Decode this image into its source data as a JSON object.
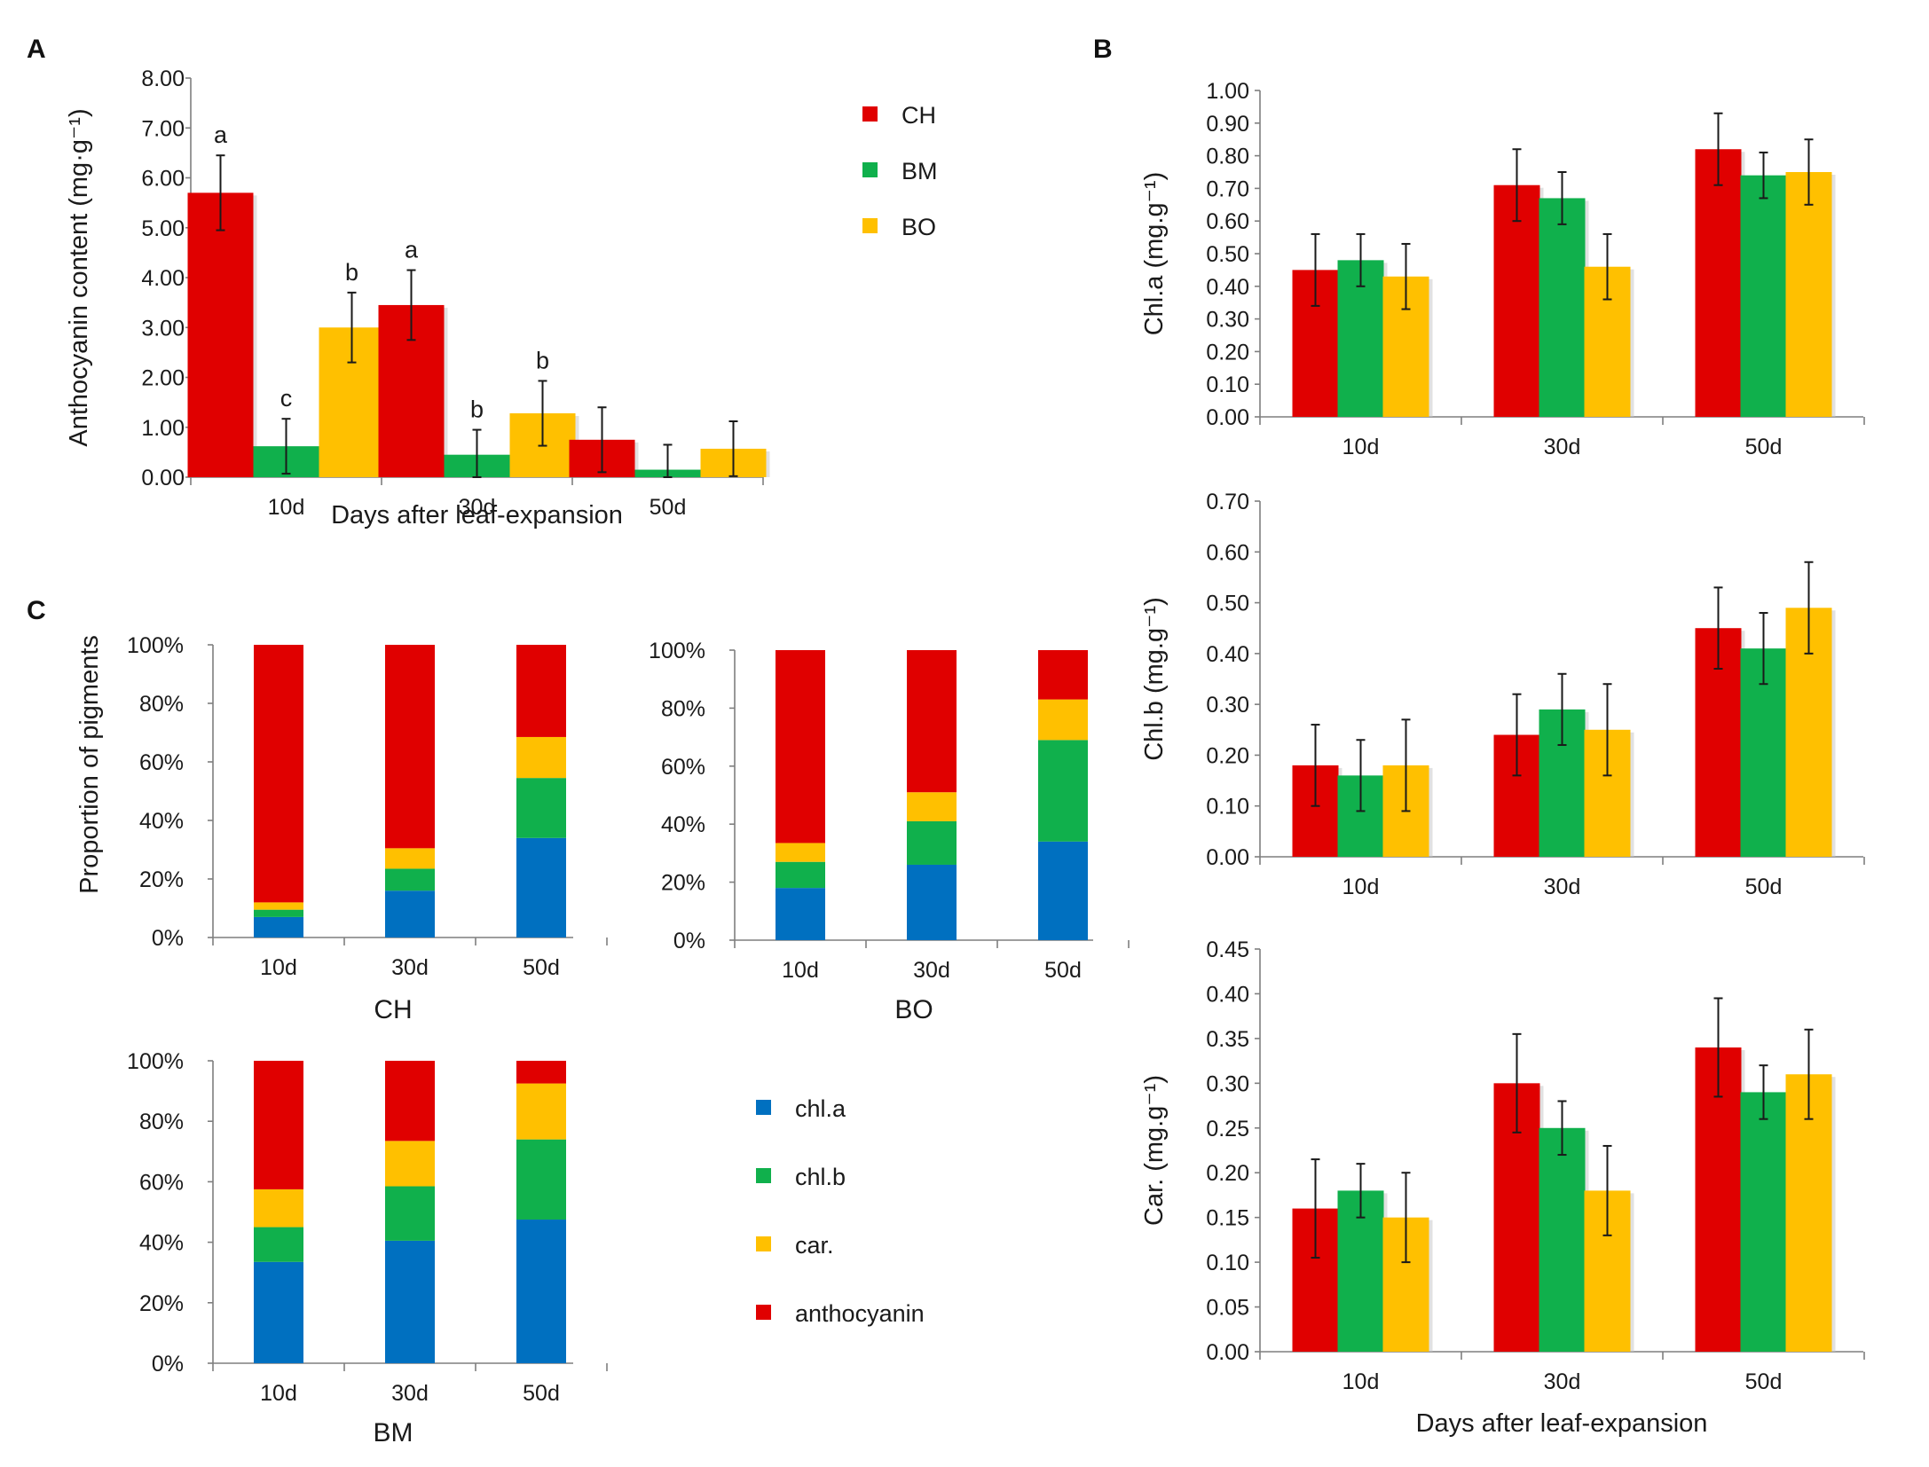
{
  "colors": {
    "CH": "#e00000",
    "BM": "#10b04c",
    "BO": "#ffc000",
    "chl.a": "#0070c0",
    "chl.b": "#10b04c",
    "car.": "#ffc000",
    "anthocyanin": "#e00000"
  },
  "panels": {
    "A": "A",
    "B": "B",
    "C": "C",
    "b_xlabel": "Days after leaf-expansion"
  },
  "chart_data": [
    {
      "id": "A",
      "type": "bar",
      "panel_letter": "A",
      "categories": [
        "10d",
        "30d",
        "50d"
      ],
      "series": [
        {
          "name": "CH",
          "values": [
            5.7,
            3.45,
            0.75
          ],
          "errors": [
            0.75,
            0.7,
            0.65
          ],
          "labels": [
            "a",
            "a",
            ""
          ]
        },
        {
          "name": "BM",
          "values": [
            0.62,
            0.45,
            0.15
          ],
          "errors": [
            0.55,
            0.5,
            0.5
          ],
          "labels": [
            "c",
            "b",
            ""
          ]
        },
        {
          "name": "BO",
          "values": [
            3.0,
            1.28,
            0.57
          ],
          "errors": [
            0.7,
            0.65,
            0.55
          ],
          "labels": [
            "b",
            "b",
            ""
          ]
        }
      ],
      "xlabel": "Days after leaf-expansion",
      "ylabel": "Anthocyanin content (mg·g⁻¹)",
      "ylim": [
        0,
        8
      ],
      "yticks": [
        "0.00",
        "1.00",
        "2.00",
        "3.00",
        "4.00",
        "5.00",
        "6.00",
        "7.00",
        "8.00"
      ],
      "legend": [
        "CH",
        "BM",
        "BO"
      ]
    },
    {
      "id": "B1",
      "type": "bar",
      "categories": [
        "10d",
        "30d",
        "50d"
      ],
      "series": [
        {
          "name": "CH",
          "values": [
            0.45,
            0.71,
            0.82
          ],
          "errors": [
            0.11,
            0.11,
            0.11
          ]
        },
        {
          "name": "BM",
          "values": [
            0.48,
            0.67,
            0.74
          ],
          "errors": [
            0.08,
            0.08,
            0.07
          ]
        },
        {
          "name": "BO",
          "values": [
            0.43,
            0.46,
            0.75
          ],
          "errors": [
            0.1,
            0.1,
            0.1
          ]
        }
      ],
      "ylabel": "Chl.a (mg.g⁻¹)",
      "ylim": [
        0,
        1
      ],
      "yticks": [
        "0.00",
        "0.10",
        "0.20",
        "0.30",
        "0.40",
        "0.50",
        "0.60",
        "0.70",
        "0.80",
        "0.90",
        "1.00"
      ]
    },
    {
      "id": "B2",
      "type": "bar",
      "categories": [
        "10d",
        "30d",
        "50d"
      ],
      "series": [
        {
          "name": "CH",
          "values": [
            0.18,
            0.24,
            0.45
          ],
          "errors": [
            0.08,
            0.08,
            0.08
          ]
        },
        {
          "name": "BM",
          "values": [
            0.16,
            0.29,
            0.41
          ],
          "errors": [
            0.07,
            0.07,
            0.07
          ]
        },
        {
          "name": "BO",
          "values": [
            0.18,
            0.25,
            0.49
          ],
          "errors": [
            0.09,
            0.09,
            0.09
          ]
        }
      ],
      "ylabel": "Chl.b (mg.g⁻¹)",
      "ylim": [
        0,
        0.7
      ],
      "yticks": [
        "0.00",
        "0.10",
        "0.20",
        "0.30",
        "0.40",
        "0.50",
        "0.60",
        "0.70"
      ]
    },
    {
      "id": "B3",
      "type": "bar",
      "categories": [
        "10d",
        "30d",
        "50d"
      ],
      "series": [
        {
          "name": "CH",
          "values": [
            0.16,
            0.3,
            0.34
          ],
          "errors": [
            0.055,
            0.055,
            0.055
          ]
        },
        {
          "name": "BM",
          "values": [
            0.18,
            0.25,
            0.29
          ],
          "errors": [
            0.03,
            0.03,
            0.03
          ]
        },
        {
          "name": "BO",
          "values": [
            0.15,
            0.18,
            0.31
          ],
          "errors": [
            0.05,
            0.05,
            0.05
          ]
        }
      ],
      "ylabel": "Car. (mg.g⁻¹)",
      "ylim": [
        0,
        0.45
      ],
      "yticks": [
        "0.00",
        "0.05",
        "0.10",
        "0.15",
        "0.20",
        "0.25",
        "0.30",
        "0.35",
        "0.40",
        "0.45"
      ]
    },
    {
      "id": "C_CH",
      "type": "bar",
      "stacked": true,
      "title": "CH",
      "categories": [
        "10d",
        "30d",
        "50d"
      ],
      "series": [
        {
          "name": "chl.a",
          "values": [
            7,
            16,
            34
          ]
        },
        {
          "name": "chl.b",
          "values": [
            2.5,
            7.5,
            20.5
          ]
        },
        {
          "name": "car.",
          "values": [
            2.5,
            7,
            14
          ]
        },
        {
          "name": "anthocyanin",
          "values": [
            88,
            69.5,
            31.5
          ]
        }
      ],
      "ylabel": "Proportion of pigments",
      "ylim": [
        0,
        100
      ],
      "yticks": [
        "0%",
        "20%",
        "40%",
        "60%",
        "80%",
        "100%"
      ]
    },
    {
      "id": "C_BO",
      "type": "bar",
      "stacked": true,
      "title": "BO",
      "categories": [
        "10d",
        "30d",
        "50d"
      ],
      "series": [
        {
          "name": "chl.a",
          "values": [
            18,
            26,
            34
          ]
        },
        {
          "name": "chl.b",
          "values": [
            9,
            15,
            35
          ]
        },
        {
          "name": "car.",
          "values": [
            6.5,
            10,
            14
          ]
        },
        {
          "name": "anthocyanin",
          "values": [
            66.5,
            49,
            17
          ]
        }
      ],
      "ylim": [
        0,
        100
      ],
      "yticks": [
        "0%",
        "20%",
        "40%",
        "60%",
        "80%",
        "100%"
      ]
    },
    {
      "id": "C_BM",
      "type": "bar",
      "stacked": true,
      "title": "BM",
      "categories": [
        "10d",
        "30d",
        "50d"
      ],
      "series": [
        {
          "name": "chl.a",
          "values": [
            33.5,
            40.5,
            47.5
          ]
        },
        {
          "name": "chl.b",
          "values": [
            11.5,
            18,
            26.5
          ]
        },
        {
          "name": "car.",
          "values": [
            12.5,
            15,
            18.5
          ]
        },
        {
          "name": "anthocyanin",
          "values": [
            42.5,
            26.5,
            7.5
          ]
        }
      ],
      "ylim": [
        0,
        100
      ],
      "yticks": [
        "0%",
        "20%",
        "40%",
        "60%",
        "80%",
        "100%"
      ],
      "legend": [
        "chl.a",
        "chl.b",
        "car.",
        "anthocyanin"
      ]
    }
  ]
}
